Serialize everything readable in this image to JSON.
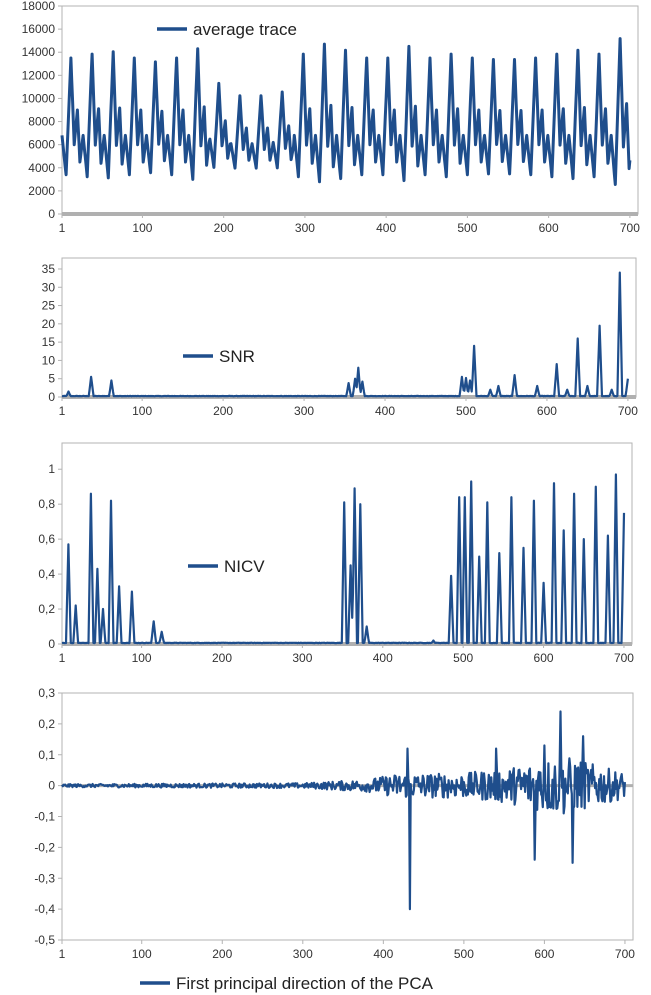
{
  "chart_data": [
    {
      "type": "line",
      "legend": "average trace",
      "legend_position": "top-left",
      "xlim": [
        1,
        710
      ],
      "ylim": [
        0,
        18000
      ],
      "x_ticks": [
        1,
        100,
        200,
        300,
        400,
        500,
        600,
        700
      ],
      "y_ticks": [
        0,
        2000,
        4000,
        6000,
        8000,
        10000,
        12000,
        14000,
        16000,
        18000
      ],
      "y_tick_labels": [
        "0",
        "2000",
        "4000",
        "6000",
        "8000",
        "10000",
        "12000",
        "14000",
        "16000",
        "18000"
      ],
      "grid": false,
      "cycle_start": 1,
      "cycle_length": 26,
      "cycle_shape": [
        [
          0,
          6800
        ],
        [
          5,
          3400
        ],
        [
          11,
          13500
        ],
        [
          15,
          6000
        ],
        [
          19,
          9000
        ],
        [
          22,
          4500
        ],
        [
          26,
          6800
        ]
      ],
      "cycle_amplitude_multiplier": [
        1.0,
        1.05,
        1.08,
        1.0,
        0.95,
        1.0,
        1.12,
        0.72,
        0.62,
        0.62,
        0.65,
        1.05,
        1.18,
        1.1,
        1.0,
        1.0,
        1.15,
        1.0,
        1.05,
        1.0,
        0.98,
        0.98,
        1.0,
        1.05,
        1.1,
        1.05,
        1.25,
        1.0
      ]
    },
    {
      "type": "line",
      "legend": "SNR",
      "legend_position": "middle-left",
      "xlim": [
        1,
        710
      ],
      "ylim": [
        0,
        38
      ],
      "x_ticks": [
        1,
        100,
        200,
        300,
        400,
        500,
        600,
        700
      ],
      "y_ticks": [
        0,
        5,
        10,
        15,
        20,
        25,
        30,
        35
      ],
      "y_tick_labels": [
        "0",
        "5",
        "10",
        "15",
        "20",
        "25",
        "30",
        "35"
      ],
      "grid": false,
      "baseline": 0.2,
      "peaks": [
        [
          9,
          1.5
        ],
        [
          37,
          5.5
        ],
        [
          62,
          4.5
        ],
        [
          355,
          3.8
        ],
        [
          363,
          5.0
        ],
        [
          367,
          8.0
        ],
        [
          372,
          4.2
        ],
        [
          495,
          5.5
        ],
        [
          500,
          5.2
        ],
        [
          505,
          4.5
        ],
        [
          510,
          14.0
        ],
        [
          530,
          2.0
        ],
        [
          540,
          3.0
        ],
        [
          560,
          6.0
        ],
        [
          588,
          3.0
        ],
        [
          612,
          9.0
        ],
        [
          625,
          2.0
        ],
        [
          638,
          16.0
        ],
        [
          650,
          3.0
        ],
        [
          665,
          19.5
        ],
        [
          680,
          2.0
        ],
        [
          690,
          34.0
        ],
        [
          700,
          5.0
        ]
      ]
    },
    {
      "type": "line",
      "legend": "NICV",
      "legend_position": "middle-left",
      "xlim": [
        1,
        710
      ],
      "ylim": [
        0,
        1.15
      ],
      "x_ticks": [
        1,
        100,
        200,
        300,
        400,
        500,
        600,
        700
      ],
      "y_ticks": [
        0,
        0.2,
        0.4,
        0.6,
        0.8,
        1
      ],
      "y_tick_labels": [
        "0",
        "0,2",
        "0,4",
        "0,6",
        "0,8",
        "1"
      ],
      "grid": false,
      "baseline": 0.005,
      "peaks": [
        [
          9,
          0.57
        ],
        [
          18,
          0.22
        ],
        [
          37,
          0.86
        ],
        [
          45,
          0.43
        ],
        [
          52,
          0.2
        ],
        [
          62,
          0.82
        ],
        [
          72,
          0.33
        ],
        [
          88,
          0.3
        ],
        [
          115,
          0.13
        ],
        [
          125,
          0.07
        ],
        [
          352,
          0.81
        ],
        [
          360,
          0.45
        ],
        [
          365,
          0.89
        ],
        [
          372,
          0.8
        ],
        [
          380,
          0.1
        ],
        [
          463,
          0.02
        ],
        [
          485,
          0.39
        ],
        [
          495,
          0.84
        ],
        [
          502,
          0.84
        ],
        [
          510,
          0.93
        ],
        [
          520,
          0.5
        ],
        [
          530,
          0.81
        ],
        [
          545,
          0.52
        ],
        [
          560,
          0.84
        ],
        [
          575,
          0.55
        ],
        [
          588,
          0.82
        ],
        [
          600,
          0.35
        ],
        [
          613,
          0.92
        ],
        [
          625,
          0.65
        ],
        [
          638,
          0.86
        ],
        [
          650,
          0.6
        ],
        [
          665,
          0.9
        ],
        [
          680,
          0.62
        ],
        [
          690,
          0.97
        ],
        [
          700,
          0.75
        ]
      ]
    },
    {
      "type": "line",
      "legend": "First principal direction of the PCA",
      "legend_position": "bottom-center",
      "xlim": [
        1,
        710
      ],
      "ylim": [
        -0.5,
        0.3
      ],
      "x_ticks": [
        1,
        100,
        200,
        300,
        400,
        500,
        600,
        700
      ],
      "y_ticks": [
        -0.5,
        -0.4,
        -0.3,
        -0.2,
        -0.1,
        0,
        0.1,
        0.2,
        0.3
      ],
      "y_tick_labels": [
        "-0,5",
        "-0,4",
        "-0,3",
        "-0,2",
        "-0,1",
        "0",
        "0,1",
        "0,2",
        "0,3"
      ],
      "grid": false,
      "noise_envelope": [
        [
          1,
          0.005
        ],
        [
          300,
          0.008
        ],
        [
          380,
          0.02
        ],
        [
          420,
          0.04
        ],
        [
          500,
          0.04
        ],
        [
          560,
          0.06
        ],
        [
          620,
          0.1
        ],
        [
          700,
          0.04
        ]
      ],
      "spikes": [
        [
          430,
          0.12
        ],
        [
          433,
          -0.4
        ],
        [
          540,
          0.12
        ],
        [
          588,
          -0.24
        ],
        [
          600,
          0.13
        ],
        [
          620,
          0.24
        ],
        [
          635,
          -0.25
        ],
        [
          648,
          0.16
        ]
      ]
    }
  ]
}
